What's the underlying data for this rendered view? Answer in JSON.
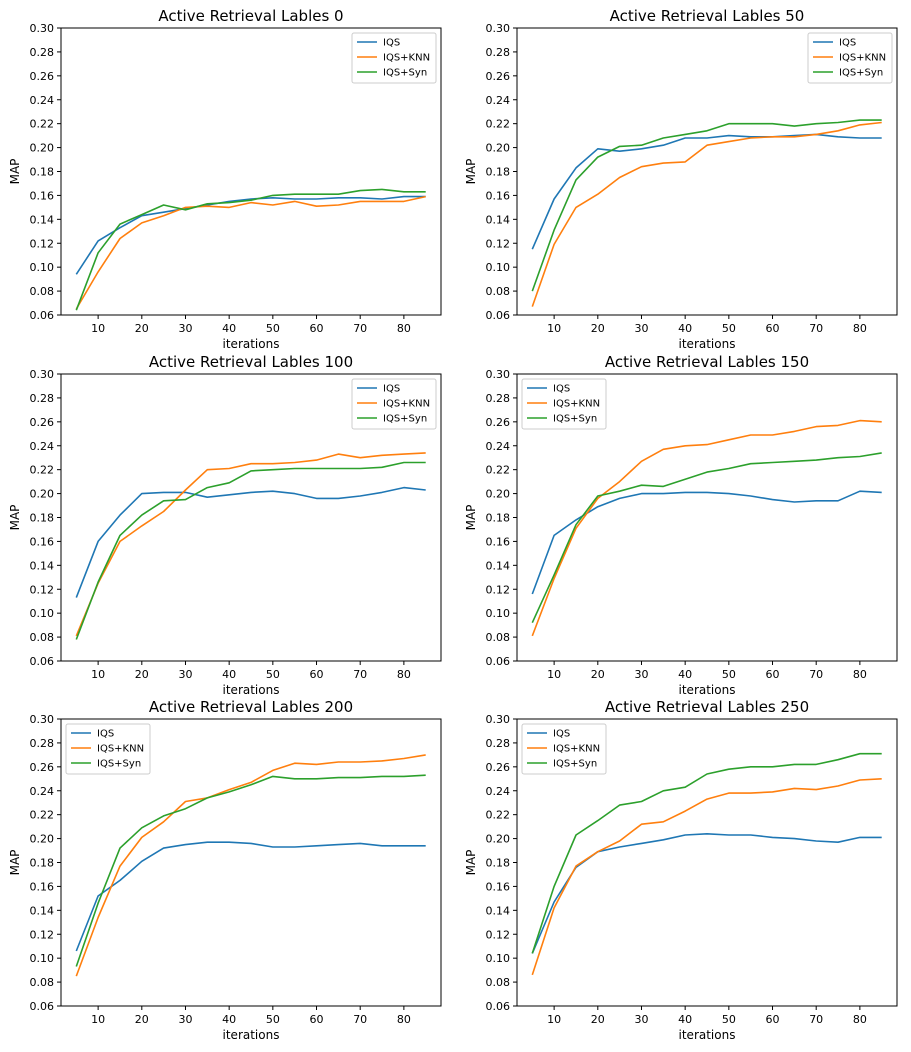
{
  "colors": {
    "IQS": "#1f77b4",
    "IQS+KNN": "#ff7f0e",
    "IQS+Syn": "#2ca02c"
  },
  "chart_data": [
    {
      "type": "line",
      "title": "Active Retrieval Lables 0",
      "xlabel": "iterations",
      "ylabel": "MAP",
      "xlim": [
        1.5,
        88.5
      ],
      "ylim": [
        0.06,
        0.3
      ],
      "xticks": [
        "10",
        "20",
        "30",
        "40",
        "50",
        "60",
        "70",
        "80"
      ],
      "yticks": [
        "0.06",
        "0.08",
        "0.10",
        "0.12",
        "0.14",
        "0.16",
        "0.18",
        "0.20",
        "0.22",
        "0.24",
        "0.26",
        "0.28",
        "0.30"
      ],
      "legend_position": "top-right",
      "x": [
        5,
        10,
        15,
        20,
        25,
        30,
        35,
        40,
        45,
        50,
        55,
        60,
        65,
        70,
        75,
        80,
        85
      ],
      "series": [
        {
          "name": "IQS",
          "values": [
            0.094,
            0.122,
            0.133,
            0.143,
            0.146,
            0.149,
            0.152,
            0.155,
            0.157,
            0.158,
            0.157,
            0.157,
            0.158,
            0.158,
            0.157,
            0.159,
            0.159
          ]
        },
        {
          "name": "IQS+KNN",
          "values": [
            0.065,
            0.096,
            0.124,
            0.137,
            0.143,
            0.15,
            0.151,
            0.15,
            0.154,
            0.152,
            0.155,
            0.151,
            0.152,
            0.155,
            0.155,
            0.155,
            0.159
          ]
        },
        {
          "name": "IQS+Syn",
          "values": [
            0.064,
            0.112,
            0.136,
            0.144,
            0.152,
            0.148,
            0.153,
            0.154,
            0.156,
            0.16,
            0.161,
            0.161,
            0.161,
            0.164,
            0.165,
            0.163,
            0.163
          ]
        }
      ]
    },
    {
      "type": "line",
      "title": "Active Retrieval Lables 50",
      "xlabel": "iterations",
      "ylabel": "MAP",
      "xlim": [
        1.5,
        88.5
      ],
      "ylim": [
        0.06,
        0.3
      ],
      "xticks": [
        "10",
        "20",
        "30",
        "40",
        "50",
        "60",
        "70",
        "80"
      ],
      "yticks": [
        "0.06",
        "0.08",
        "0.10",
        "0.12",
        "0.14",
        "0.16",
        "0.18",
        "0.20",
        "0.22",
        "0.24",
        "0.26",
        "0.28",
        "0.30"
      ],
      "legend_position": "top-right",
      "x": [
        5,
        10,
        15,
        20,
        25,
        30,
        35,
        40,
        45,
        50,
        55,
        60,
        65,
        70,
        75,
        80,
        85
      ],
      "series": [
        {
          "name": "IQS",
          "values": [
            0.115,
            0.157,
            0.183,
            0.199,
            0.197,
            0.199,
            0.202,
            0.208,
            0.208,
            0.21,
            0.209,
            0.209,
            0.21,
            0.211,
            0.209,
            0.208,
            0.208
          ]
        },
        {
          "name": "IQS+KNN",
          "values": [
            0.067,
            0.119,
            0.15,
            0.161,
            0.175,
            0.184,
            0.187,
            0.188,
            0.202,
            0.205,
            0.208,
            0.209,
            0.209,
            0.211,
            0.214,
            0.219,
            0.221
          ]
        },
        {
          "name": "IQS+Syn",
          "values": [
            0.08,
            0.131,
            0.173,
            0.192,
            0.201,
            0.202,
            0.208,
            0.211,
            0.214,
            0.22,
            0.22,
            0.22,
            0.218,
            0.22,
            0.221,
            0.223,
            0.223
          ]
        }
      ]
    },
    {
      "type": "line",
      "title": "Active Retrieval Lables 100",
      "xlabel": "iterations",
      "ylabel": "MAP",
      "xlim": [
        1.5,
        88.5
      ],
      "ylim": [
        0.06,
        0.3
      ],
      "xticks": [
        "10",
        "20",
        "30",
        "40",
        "50",
        "60",
        "70",
        "80"
      ],
      "yticks": [
        "0.06",
        "0.08",
        "0.10",
        "0.12",
        "0.14",
        "0.16",
        "0.18",
        "0.20",
        "0.22",
        "0.24",
        "0.26",
        "0.28",
        "0.30"
      ],
      "legend_position": "top-right",
      "x": [
        5,
        10,
        15,
        20,
        25,
        30,
        35,
        40,
        45,
        50,
        55,
        60,
        65,
        70,
        75,
        80,
        85
      ],
      "series": [
        {
          "name": "IQS",
          "values": [
            0.113,
            0.16,
            0.182,
            0.2,
            0.201,
            0.201,
            0.197,
            0.199,
            0.201,
            0.202,
            0.2,
            0.196,
            0.196,
            0.198,
            0.201,
            0.205,
            0.203
          ]
        },
        {
          "name": "IQS+KNN",
          "values": [
            0.081,
            0.125,
            0.16,
            0.173,
            0.185,
            0.203,
            0.22,
            0.221,
            0.225,
            0.225,
            0.226,
            0.228,
            0.233,
            0.23,
            0.232,
            0.233,
            0.234
          ]
        },
        {
          "name": "IQS+Syn",
          "values": [
            0.078,
            0.126,
            0.165,
            0.182,
            0.194,
            0.195,
            0.205,
            0.209,
            0.219,
            0.22,
            0.221,
            0.221,
            0.221,
            0.221,
            0.222,
            0.226,
            0.226
          ]
        }
      ]
    },
    {
      "type": "line",
      "title": "Active Retrieval Lables 150",
      "xlabel": "iterations",
      "ylabel": "MAP",
      "xlim": [
        1.5,
        88.5
      ],
      "ylim": [
        0.06,
        0.3
      ],
      "xticks": [
        "10",
        "20",
        "30",
        "40",
        "50",
        "60",
        "70",
        "80"
      ],
      "yticks": [
        "0.06",
        "0.08",
        "0.10",
        "0.12",
        "0.14",
        "0.16",
        "0.18",
        "0.20",
        "0.22",
        "0.24",
        "0.26",
        "0.28",
        "0.30"
      ],
      "legend_position": "top-left",
      "x": [
        5,
        10,
        15,
        20,
        25,
        30,
        35,
        40,
        45,
        50,
        55,
        60,
        65,
        70,
        75,
        80,
        85
      ],
      "series": [
        {
          "name": "IQS",
          "values": [
            0.116,
            0.165,
            0.178,
            0.189,
            0.196,
            0.2,
            0.2,
            0.201,
            0.201,
            0.2,
            0.198,
            0.195,
            0.193,
            0.194,
            0.194,
            0.202,
            0.201
          ]
        },
        {
          "name": "IQS+KNN",
          "values": [
            0.081,
            0.129,
            0.171,
            0.196,
            0.21,
            0.227,
            0.237,
            0.24,
            0.241,
            0.245,
            0.249,
            0.249,
            0.252,
            0.256,
            0.257,
            0.261,
            0.26
          ]
        },
        {
          "name": "IQS+Syn",
          "values": [
            0.092,
            0.132,
            0.174,
            0.198,
            0.202,
            0.207,
            0.206,
            0.212,
            0.218,
            0.221,
            0.225,
            0.226,
            0.227,
            0.228,
            0.23,
            0.231,
            0.234
          ]
        }
      ]
    },
    {
      "type": "line",
      "title": "Active Retrieval Lables 200",
      "xlabel": "iterations",
      "ylabel": "MAP",
      "xlim": [
        1.5,
        88.5
      ],
      "ylim": [
        0.06,
        0.3
      ],
      "xticks": [
        "10",
        "20",
        "30",
        "40",
        "50",
        "60",
        "70",
        "80"
      ],
      "yticks": [
        "0.06",
        "0.08",
        "0.10",
        "0.12",
        "0.14",
        "0.16",
        "0.18",
        "0.20",
        "0.22",
        "0.24",
        "0.26",
        "0.28",
        "0.30"
      ],
      "legend_position": "top-left",
      "x": [
        5,
        10,
        15,
        20,
        25,
        30,
        35,
        40,
        45,
        50,
        55,
        60,
        65,
        70,
        75,
        80,
        85
      ],
      "series": [
        {
          "name": "IQS",
          "values": [
            0.106,
            0.152,
            0.165,
            0.181,
            0.192,
            0.195,
            0.197,
            0.197,
            0.196,
            0.193,
            0.193,
            0.194,
            0.195,
            0.196,
            0.194,
            0.194,
            0.194
          ]
        },
        {
          "name": "IQS+KNN",
          "values": [
            0.085,
            0.134,
            0.177,
            0.201,
            0.214,
            0.231,
            0.234,
            0.241,
            0.247,
            0.257,
            0.263,
            0.262,
            0.264,
            0.264,
            0.265,
            0.267,
            0.27
          ]
        },
        {
          "name": "IQS+Syn",
          "values": [
            0.093,
            0.146,
            0.192,
            0.209,
            0.219,
            0.225,
            0.234,
            0.239,
            0.245,
            0.252,
            0.25,
            0.25,
            0.251,
            0.251,
            0.252,
            0.252,
            0.253
          ]
        }
      ]
    },
    {
      "type": "line",
      "title": "Active Retrieval Lables 250",
      "xlabel": "iterations",
      "ylabel": "MAP",
      "xlim": [
        1.5,
        88.5
      ],
      "ylim": [
        0.06,
        0.3
      ],
      "xticks": [
        "10",
        "20",
        "30",
        "40",
        "50",
        "60",
        "70",
        "80"
      ],
      "yticks": [
        "0.06",
        "0.08",
        "0.10",
        "0.12",
        "0.14",
        "0.16",
        "0.18",
        "0.20",
        "0.22",
        "0.24",
        "0.26",
        "0.28",
        "0.30"
      ],
      "legend_position": "top-left",
      "x": [
        5,
        10,
        15,
        20,
        25,
        30,
        35,
        40,
        45,
        50,
        55,
        60,
        65,
        70,
        75,
        80,
        85
      ],
      "series": [
        {
          "name": "IQS",
          "values": [
            0.104,
            0.147,
            0.176,
            0.189,
            0.193,
            0.196,
            0.199,
            0.203,
            0.204,
            0.203,
            0.203,
            0.201,
            0.2,
            0.198,
            0.197,
            0.201,
            0.201
          ]
        },
        {
          "name": "IQS+KNN",
          "values": [
            0.086,
            0.142,
            0.177,
            0.189,
            0.198,
            0.212,
            0.214,
            0.223,
            0.233,
            0.238,
            0.238,
            0.239,
            0.242,
            0.241,
            0.244,
            0.249,
            0.25
          ]
        },
        {
          "name": "IQS+Syn",
          "values": [
            0.104,
            0.16,
            0.203,
            0.215,
            0.228,
            0.231,
            0.24,
            0.243,
            0.254,
            0.258,
            0.26,
            0.26,
            0.262,
            0.262,
            0.266,
            0.271,
            0.271
          ]
        }
      ]
    }
  ]
}
